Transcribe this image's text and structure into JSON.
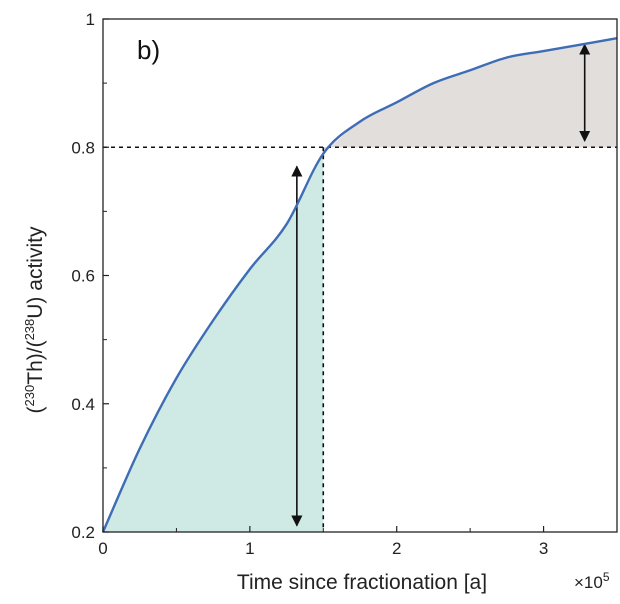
{
  "chart_data": {
    "type": "line",
    "panel_label": "b)",
    "xlabel": "Time since fractionation [a]",
    "x_multiplier": "×10",
    "x_multiplier_exponent": "5",
    "ylabel": {
      "open1": "(",
      "sup1": "230",
      "mid1": "Th)/(",
      "sup2": "238",
      "mid2": "U) activity"
    },
    "xlim": [
      0,
      3.5
    ],
    "ylim": [
      0.2,
      1.0
    ],
    "xticks": [
      0,
      1,
      2,
      3
    ],
    "xtick_labels": [
      "0",
      "1",
      "2",
      "3"
    ],
    "yticks": [
      0.2,
      0.4,
      0.6,
      0.8,
      1.0
    ],
    "ytick_labels": [
      "0.2",
      "0.4",
      "0.6",
      "0.8",
      "1"
    ],
    "grid": false,
    "series": [
      {
        "x": [
          0,
          0.25,
          0.5,
          0.75,
          1.0,
          1.25,
          1.5,
          1.75,
          2.0,
          2.25,
          2.5,
          2.75,
          3.0,
          3.25,
          3.5
        ],
        "y": [
          0.2,
          0.33,
          0.44,
          0.53,
          0.61,
          0.68,
          0.79,
          0.84,
          0.87,
          0.9,
          0.92,
          0.94,
          0.95,
          0.96,
          0.97
        ]
      }
    ],
    "reference_lines": {
      "x": 1.5,
      "y": 0.8
    },
    "shaded_regions": [
      {
        "region": "below-curve",
        "x_range": [
          0,
          1.5
        ],
        "color": "#cfe9e4"
      },
      {
        "region": "above-0.8",
        "x_range": [
          1.5,
          3.5
        ],
        "color": "#e2dedb"
      }
    ],
    "arrows": [
      {
        "x": 1.32,
        "y_from": 0.21,
        "y_to": 0.77
      },
      {
        "x": 3.28,
        "y_from": 0.81,
        "y_to": 0.96
      }
    ],
    "colors": {
      "curve": "#3f6db5",
      "axes": "#222222"
    }
  }
}
